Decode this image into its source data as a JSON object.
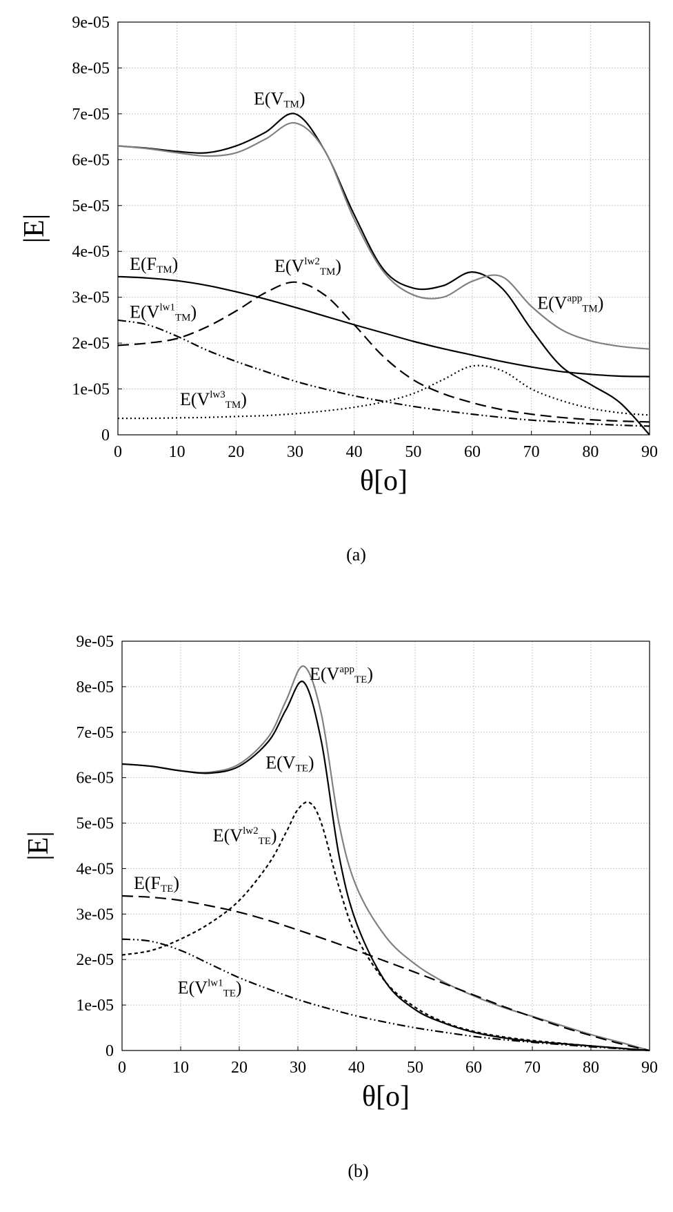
{
  "chart_data": [
    {
      "type": "line",
      "caption": "(a)",
      "xlabel": "θ[o]",
      "ylabel": "|E|",
      "xlim": [
        0,
        90
      ],
      "ylim": [
        0,
        9e-05
      ],
      "xticks": [
        "0",
        "10",
        "20",
        "30",
        "40",
        "50",
        "60",
        "70",
        "80",
        "90"
      ],
      "yticks": [
        "0",
        "1e-05",
        "2e-05",
        "3e-05",
        "4e-05",
        "5e-05",
        "6e-05",
        "7e-05",
        "8e-05",
        "9e-05"
      ],
      "grid": true,
      "series": [
        {
          "name": "E(V_TM)",
          "color": "#000000",
          "dash": "solid",
          "x": [
            0,
            5,
            10,
            15,
            20,
            25,
            30,
            35,
            40,
            45,
            50,
            55,
            60,
            65,
            70,
            75,
            80,
            85,
            90
          ],
          "y": [
            6.3e-05,
            6.25e-05,
            6.18e-05,
            6.15e-05,
            6.3e-05,
            6.6e-05,
            7e-05,
            6.2e-05,
            4.8e-05,
            3.6e-05,
            3.2e-05,
            3.25e-05,
            3.55e-05,
            3.2e-05,
            2.3e-05,
            1.5e-05,
            1.1e-05,
            7e-06,
            0
          ]
        },
        {
          "name": "E(V^app_TM)",
          "color": "#808080",
          "dash": "solid",
          "x": [
            0,
            5,
            10,
            15,
            20,
            25,
            30,
            35,
            40,
            45,
            50,
            55,
            60,
            65,
            70,
            75,
            80,
            85,
            90
          ],
          "y": [
            6.3e-05,
            6.24e-05,
            6.15e-05,
            6.08e-05,
            6.15e-05,
            6.45e-05,
            6.8e-05,
            6.2e-05,
            4.7e-05,
            3.55e-05,
            3.05e-05,
            3e-05,
            3.35e-05,
            3.45e-05,
            2.8e-05,
            2.3e-05,
            2.05e-05,
            1.93e-05,
            1.87e-05
          ]
        },
        {
          "name": "E(F_TM)",
          "color": "#000000",
          "dash": "solid",
          "x": [
            0,
            5,
            10,
            15,
            20,
            25,
            30,
            35,
            40,
            45,
            50,
            55,
            60,
            65,
            70,
            75,
            80,
            85,
            90
          ],
          "y": [
            3.45e-05,
            3.42e-05,
            3.36e-05,
            3.26e-05,
            3.12e-05,
            2.96e-05,
            2.78e-05,
            2.59e-05,
            2.4e-05,
            2.22e-05,
            2.04e-05,
            1.88e-05,
            1.74e-05,
            1.6e-05,
            1.48e-05,
            1.38e-05,
            1.32e-05,
            1.28e-05,
            1.27e-05
          ]
        },
        {
          "name": "E(V^lw2_TM)",
          "color": "#000000",
          "dash": "long",
          "x": [
            0,
            5,
            10,
            15,
            20,
            25,
            30,
            35,
            40,
            45,
            50,
            55,
            60,
            65,
            70,
            75,
            80,
            85,
            90
          ],
          "y": [
            1.95e-05,
            2e-05,
            2.1e-05,
            2.35e-05,
            2.7e-05,
            3.1e-05,
            3.33e-05,
            3.05e-05,
            2.4e-05,
            1.7e-05,
            1.2e-05,
            9e-06,
            7e-06,
            5.5e-06,
            4.5e-06,
            3.8e-06,
            3.3e-06,
            3e-06,
            2.8e-06
          ]
        },
        {
          "name": "E(V^lw1_TM)",
          "color": "#000000",
          "dash": "dashdotdot",
          "x": [
            0,
            5,
            10,
            15,
            20,
            25,
            30,
            35,
            40,
            45,
            50,
            55,
            60,
            65,
            70,
            75,
            80,
            85,
            90
          ],
          "y": [
            2.5e-05,
            2.4e-05,
            2.15e-05,
            1.85e-05,
            1.6e-05,
            1.38e-05,
            1.17e-05,
            1e-05,
            8.5e-06,
            7.3e-06,
            6.2e-06,
            5.3e-06,
            4.5e-06,
            3.8e-06,
            3.2e-06,
            2.8e-06,
            2.4e-06,
            2.1e-06,
            1.9e-06
          ]
        },
        {
          "name": "E(V^lw3_TM)",
          "color": "#000000",
          "dash": "dotted",
          "x": [
            0,
            5,
            10,
            15,
            20,
            25,
            30,
            35,
            40,
            45,
            50,
            55,
            60,
            65,
            70,
            75,
            80,
            85,
            90
          ],
          "y": [
            3.6e-06,
            3.6e-06,
            3.7e-06,
            3.8e-06,
            4e-06,
            4.2e-06,
            4.6e-06,
            5.2e-06,
            6e-06,
            7.2e-06,
            9e-06,
            1.2e-05,
            1.5e-05,
            1.4e-05,
            1e-05,
            7.5e-06,
            5.8e-06,
            4.8e-06,
            4.3e-06
          ]
        }
      ],
      "annotations": [
        {
          "id": "vtm",
          "base": "E(V",
          "sup": "",
          "sub": "TM",
          "end": ")",
          "x": 23,
          "y": 7.2e-05
        },
        {
          "id": "vlw2",
          "base": "E(V",
          "sup": "lw2",
          "sub": "TM",
          "end": ")",
          "x": 26.5,
          "y": 3.55e-05
        },
        {
          "id": "ftm",
          "base": "E(F",
          "sup": "",
          "sub": "TM",
          "end": ")",
          "x": 2,
          "y": 3.6e-05
        },
        {
          "id": "vlw1",
          "base": "E(V",
          "sup": "lw1",
          "sub": "TM",
          "end": ")",
          "x": 2,
          "y": 2.55e-05
        },
        {
          "id": "vapp",
          "base": "E(V",
          "sup": "app",
          "sub": "TM",
          "end": ")",
          "x": 71,
          "y": 2.75e-05
        },
        {
          "id": "vlw3",
          "base": "E(V",
          "sup": "lw3",
          "sub": "TM",
          "end": ")",
          "x": 10.5,
          "y": 6.5e-06
        }
      ]
    },
    {
      "type": "line",
      "caption": "(b)",
      "xlabel": "θ[o]",
      "ylabel": "|E|",
      "xlim": [
        0,
        90
      ],
      "ylim": [
        0,
        9e-05
      ],
      "xticks": [
        "0",
        "10",
        "20",
        "30",
        "40",
        "50",
        "60",
        "70",
        "80",
        "90"
      ],
      "yticks": [
        "0",
        "1e-05",
        "2e-05",
        "3e-05",
        "4e-05",
        "5e-05",
        "6e-05",
        "7e-05",
        "8e-05",
        "9e-05"
      ],
      "grid": true,
      "series": [
        {
          "name": "E(V^app_TE)",
          "color": "#808080",
          "dash": "solid",
          "x": [
            0,
            5,
            10,
            15,
            20,
            25,
            28,
            31,
            34,
            37,
            40,
            45,
            50,
            55,
            60,
            65,
            70,
            75,
            80,
            85,
            90
          ],
          "y": [
            6.3e-05,
            6.25e-05,
            6.15e-05,
            6.12e-05,
            6.3e-05,
            6.9e-05,
            7.7e-05,
            8.45e-05,
            7.4e-05,
            5e-05,
            3.6e-05,
            2.5e-05,
            1.9e-05,
            1.5e-05,
            1.2e-05,
            9.5e-06,
            7.5e-06,
            5.5e-06,
            3.5e-06,
            1.8e-06,
            0
          ]
        },
        {
          "name": "E(V_TE)",
          "color": "#000000",
          "dash": "solid",
          "x": [
            0,
            5,
            10,
            15,
            20,
            25,
            28,
            31,
            34,
            37,
            40,
            45,
            50,
            55,
            60,
            65,
            70,
            75,
            80,
            85,
            90
          ],
          "y": [
            6.3e-05,
            6.25e-05,
            6.15e-05,
            6.1e-05,
            6.25e-05,
            6.8e-05,
            7.5e-05,
            8.1e-05,
            6.8e-05,
            4.3e-05,
            2.8e-05,
            1.5e-05,
            9e-06,
            6e-06,
            4e-06,
            2.8e-06,
            2e-06,
            1.5e-06,
            1e-06,
            5e-07,
            0
          ]
        },
        {
          "name": "E(V^lw2_TE)",
          "color": "#000000",
          "dash": "short",
          "x": [
            0,
            5,
            10,
            15,
            20,
            25,
            28,
            30,
            32,
            34,
            37,
            40,
            45,
            50,
            55,
            60,
            65,
            70,
            75,
            80,
            85,
            90
          ],
          "y": [
            2.1e-05,
            2.2e-05,
            2.45e-05,
            2.8e-05,
            3.3e-05,
            4.1e-05,
            4.8e-05,
            5.3e-05,
            5.45e-05,
            5e-05,
            3.6e-05,
            2.5e-05,
            1.5e-05,
            9.5e-06,
            6.2e-06,
            4.2e-06,
            3e-06,
            2.2e-06,
            1.6e-06,
            1e-06,
            5e-07,
            0
          ]
        },
        {
          "name": "E(F_TE)",
          "color": "#000000",
          "dash": "long",
          "x": [
            0,
            5,
            10,
            15,
            20,
            25,
            30,
            35,
            40,
            45,
            50,
            55,
            60,
            65,
            70,
            75,
            80,
            85,
            90
          ],
          "y": [
            3.4e-05,
            3.37e-05,
            3.3e-05,
            3.18e-05,
            3.04e-05,
            2.86e-05,
            2.65e-05,
            2.43e-05,
            2.2e-05,
            1.96e-05,
            1.72e-05,
            1.47e-05,
            1.22e-05,
            9.7e-06,
            7.4e-06,
            5.2e-06,
            3.3e-06,
            1.5e-06,
            0
          ]
        },
        {
          "name": "E(V^lw1_TE)",
          "color": "#000000",
          "dash": "dashdotdot",
          "x": [
            0,
            5,
            10,
            15,
            20,
            25,
            30,
            35,
            40,
            45,
            50,
            55,
            60,
            65,
            70,
            75,
            80,
            85,
            90
          ],
          "y": [
            2.45e-05,
            2.4e-05,
            2.2e-05,
            1.9e-05,
            1.6e-05,
            1.35e-05,
            1.12e-05,
            9.3e-06,
            7.6e-06,
            6.2e-06,
            5e-06,
            4e-06,
            3.1e-06,
            2.4e-06,
            1.8e-06,
            1.3e-06,
            8e-07,
            4e-07,
            0
          ]
        }
      ],
      "annotations": [
        {
          "id": "vapp",
          "base": "E(V",
          "sup": "app",
          "sub": "TE",
          "end": ")",
          "x": 32,
          "y": 8.15e-05
        },
        {
          "id": "vte",
          "base": "E(V",
          "sup": "",
          "sub": "TE",
          "end": ")",
          "x": 24.5,
          "y": 6.2e-05
        },
        {
          "id": "vlw2",
          "base": "E(V",
          "sup": "lw2",
          "sub": "TE",
          "end": ")",
          "x": 15.5,
          "y": 4.6e-05
        },
        {
          "id": "fte",
          "base": "E(F",
          "sup": "",
          "sub": "TE",
          "end": ")",
          "x": 2,
          "y": 3.55e-05
        },
        {
          "id": "vlw1",
          "base": "E(V",
          "sup": "lw1",
          "sub": "TE",
          "end": ")",
          "x": 9.5,
          "y": 1.25e-05
        }
      ]
    }
  ]
}
